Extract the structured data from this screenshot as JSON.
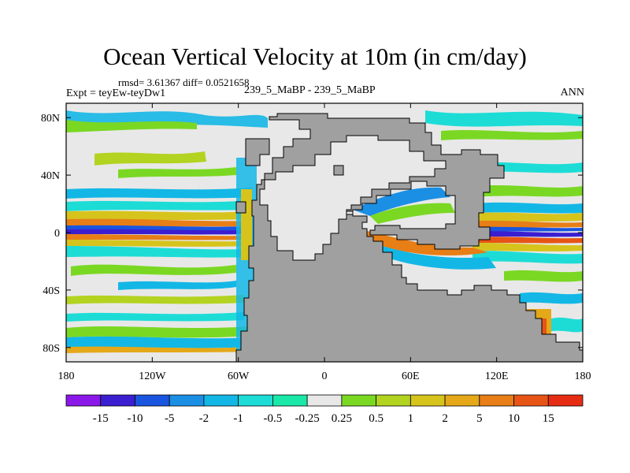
{
  "chart_data": {
    "type": "heatmap",
    "title": "Ocean Vertical Velocity at 10m (in cm/day)",
    "stats_line": "rmsd= 3.61367 diff= 0.0521658",
    "left_label": "Expt = teyEw-teyDw1",
    "center_label": "239_5_MaBP - 239_5_MaBP",
    "right_label": "ANN",
    "x_ticks": [
      "180",
      "120W",
      "60W",
      "0",
      "60E",
      "120E",
      "180"
    ],
    "y_ticks": [
      "80N",
      "40N",
      "0",
      "40S",
      "80S"
    ],
    "x_range": [
      -180,
      180
    ],
    "y_range": [
      -90,
      90
    ],
    "colorbar_levels": [
      "-15",
      "-10",
      "-5",
      "-2",
      "-1",
      "-0.5",
      "-0.25",
      "0.25",
      "0.5",
      "1",
      "2",
      "5",
      "10",
      "15"
    ],
    "colorbar_colors": [
      "#8a18e8",
      "#3b1ed0",
      "#1a55e0",
      "#1a8fe4",
      "#13b7e6",
      "#1ddcd6",
      "#19e8a8",
      "#e8e8e8",
      "#7ad823",
      "#b2d320",
      "#d6c41c",
      "#e4a818",
      "#e77e16",
      "#e65516",
      "#e62d13"
    ],
    "land_color": "#a0a0a0"
  }
}
